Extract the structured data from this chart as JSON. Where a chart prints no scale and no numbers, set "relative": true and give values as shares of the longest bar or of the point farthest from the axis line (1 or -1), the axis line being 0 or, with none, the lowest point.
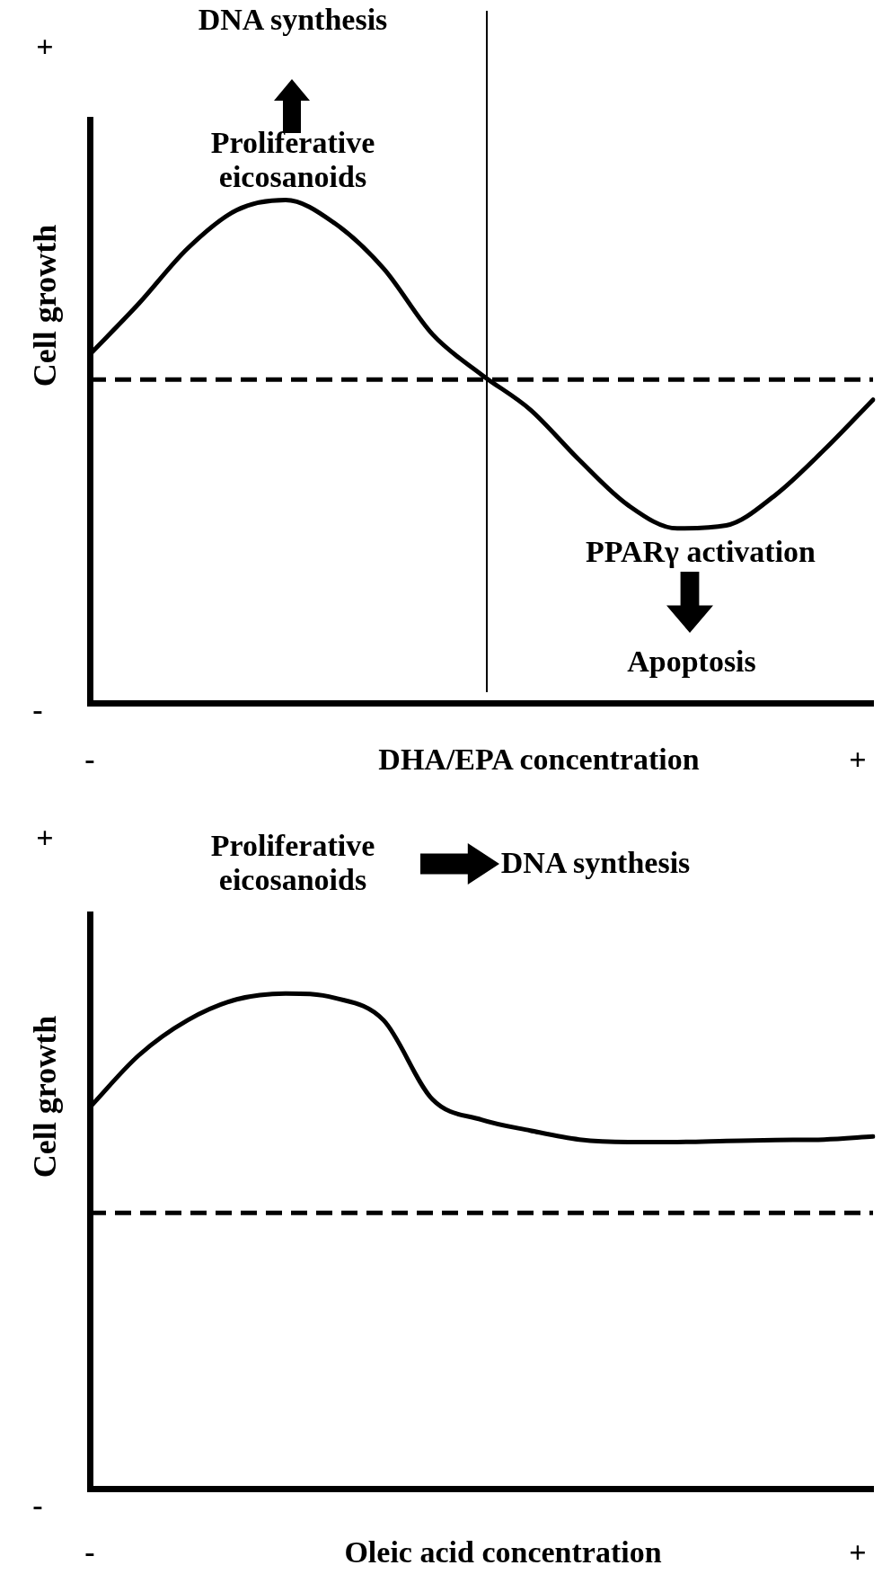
{
  "chart_data": [
    {
      "type": "line",
      "relative": true,
      "xlabel": "DHA/EPA  concentration",
      "ylabel": "Cell growth",
      "grid": false,
      "legend": false,
      "marker": "none",
      "line_style": "solid",
      "categories": [
        null,
        null,
        null,
        null,
        null,
        null,
        null,
        null,
        null,
        null,
        null,
        null,
        null,
        null,
        null,
        null,
        null
      ],
      "series": [
        {
          "color": "#000000",
          "values": [
            0.693,
            0.794,
            0.904,
            0.98,
            1,
            0.954,
            0.864,
            0.733,
            0.653,
            0.583,
            0.483,
            0.393,
            0.347,
            0.353,
            0.413,
            0.503,
            0.603
          ]
        }
      ],
      "ref_lines": [
        {
          "axis": "y",
          "value": 0.643,
          "line_style": "dashed",
          "color": "#000000"
        }
      ],
      "annotations": [
        "DNA synthesis",
        "Proliferative eicosanoids",
        "PPARγ activation",
        "Apoptosis",
        "+",
        "-",
        "-",
        "+"
      ]
    },
    {
      "type": "line",
      "relative": true,
      "xlabel": "Oleic acid concentration",
      "ylabel": "Cell growth",
      "grid": false,
      "legend": false,
      "marker": "none",
      "line_style": "solid",
      "categories": [
        null,
        null,
        null,
        null,
        null,
        null,
        null,
        null,
        null,
        null,
        null,
        null,
        null,
        null,
        null,
        null,
        null
      ],
      "series": [
        {
          "color": "#000000",
          "values": [
            0.77,
            0.875,
            0.946,
            0.988,
            1,
            0.991,
            0.946,
            0.786,
            0.745,
            0.723,
            0.705,
            0.7,
            0.7,
            0.702,
            0.704,
            0.705,
            0.711
          ]
        }
      ],
      "ref_lines": [
        {
          "axis": "y",
          "value": 0.557,
          "line_style": "dashed",
          "color": "#000000"
        }
      ],
      "annotations": [
        "Proliferative eicosanoids",
        "DNA synthesis",
        "+",
        "-",
        "-",
        "+"
      ]
    }
  ]
}
